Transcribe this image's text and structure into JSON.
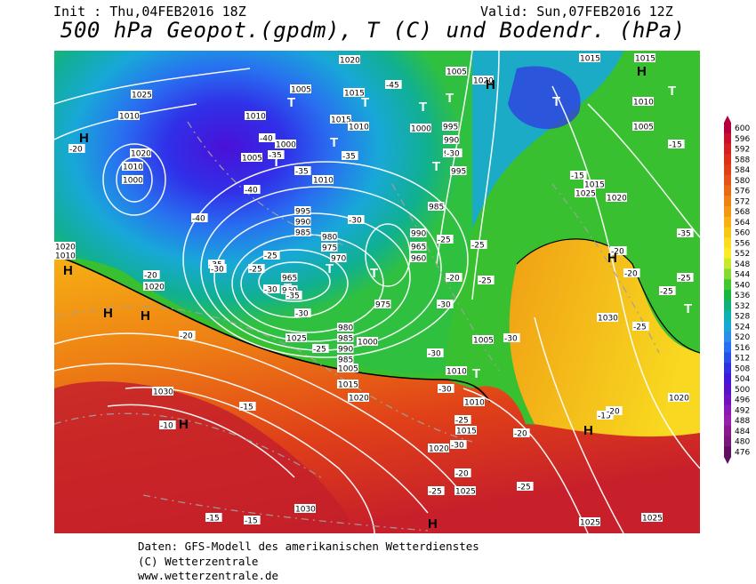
{
  "header": {
    "init": "Init : Thu,04FEB2016 18Z",
    "valid": "Valid: Sun,07FEB2016 12Z",
    "title": "500 hPa Geopot.(gpdm), T (C) und Bodendr. (hPa)"
  },
  "footer": {
    "line1": "Daten: GFS-Modell des amerikanischen Wetterdienstes",
    "line2": "(C) Wetterzentrale",
    "line3": "www.wetterzentrale.de"
  },
  "colorbar": {
    "labels": [
      "600",
      "596",
      "592",
      "588",
      "584",
      "580",
      "576",
      "572",
      "568",
      "564",
      "560",
      "556",
      "552",
      "548",
      "544",
      "540",
      "536",
      "532",
      "528",
      "524",
      "520",
      "516",
      "512",
      "508",
      "504",
      "500",
      "496",
      "492",
      "488",
      "484",
      "480",
      "476"
    ],
    "colors": [
      "#b2003c",
      "#c8102e",
      "#d42020",
      "#dc3018",
      "#e04018",
      "#e45418",
      "#ea6a14",
      "#ee8014",
      "#f29814",
      "#f6b014",
      "#f8c818",
      "#fadc20",
      "#f8ec28",
      "#c8e830",
      "#88d830",
      "#40c830",
      "#18b840",
      "#10b078",
      "#10b0b0",
      "#18a8d8",
      "#2890e8",
      "#2870f0",
      "#2850e8",
      "#3030e0",
      "#4018d8",
      "#5810c8",
      "#7010c0",
      "#8818b8",
      "#9820a8",
      "#8c1890",
      "#781878",
      "#601060"
    ]
  },
  "map": {
    "pressure_labels": [
      "1020",
      "1010",
      "1005",
      "1015",
      "1025",
      "1010",
      "1000",
      "1015",
      "995",
      "990",
      "985",
      "1000",
      "995",
      "990",
      "985",
      "1010",
      "1005",
      "1015",
      "1015",
      "1010",
      "1005",
      "1025",
      "1020",
      "1020",
      "1010",
      "1000",
      "995",
      "990",
      "985",
      "980",
      "975",
      "970",
      "965",
      "960",
      "965",
      "960",
      "975",
      "980",
      "985",
      "990",
      "985",
      "1000",
      "1005",
      "1015",
      "1020",
      "1025",
      "1005",
      "1010",
      "1010",
      "1015",
      "1020",
      "1025",
      "1030",
      "1030",
      "1030",
      "1025",
      "1020",
      "1025",
      "1020",
      "1010",
      "1020",
      "1015",
      "1010",
      "1020",
      "1005"
    ],
    "temp_labels": [
      "-45",
      "-40",
      "-35",
      "-35",
      "-30",
      "-40",
      "-40",
      "-35",
      "-30",
      "-35",
      "-30",
      "-25",
      "-25",
      "-20",
      "-30",
      "-25",
      "-20",
      "-25",
      "-25",
      "-30",
      "-35",
      "-30",
      "-25",
      "-30",
      "-20",
      "-30",
      "-30",
      "-25",
      "-20",
      "-15",
      "-25",
      "-20",
      "-20",
      "-15",
      "-15",
      "-10",
      "-15",
      "-15",
      "-15",
      "-20",
      "-20",
      "-25",
      "-25",
      "-30",
      "-20",
      "-35",
      "-25",
      "-25"
    ],
    "high_label": "H",
    "low_label": "T"
  }
}
